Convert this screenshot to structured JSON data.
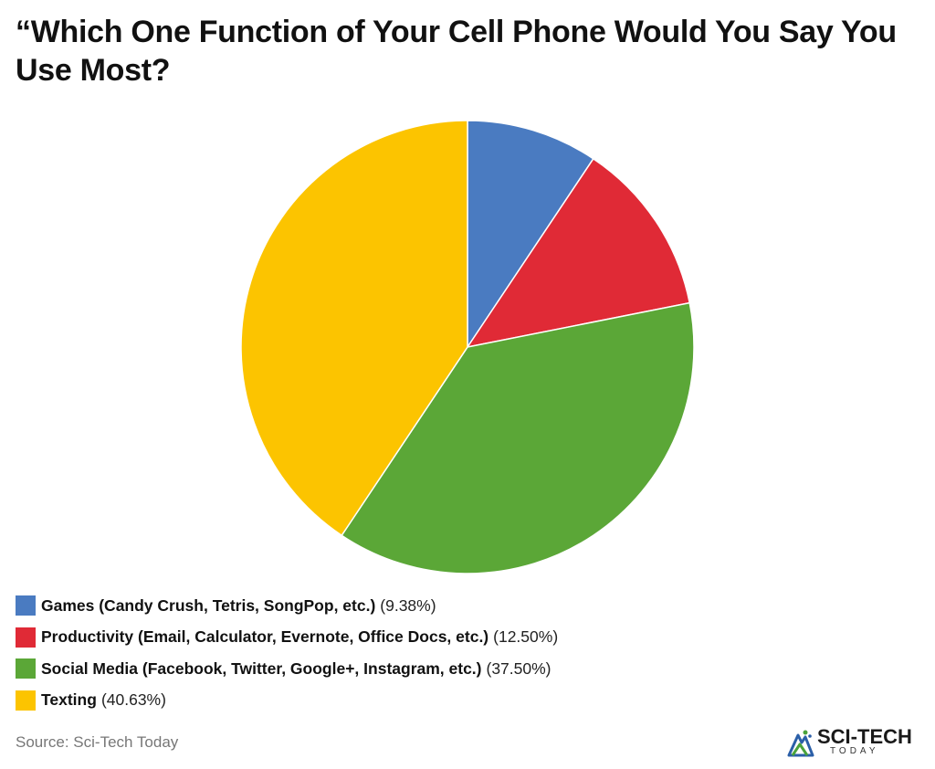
{
  "title": "“Which One Function of Your Cell Phone Would You Say You Use Most?",
  "chart_data": {
    "type": "pie",
    "categories": [
      "Games (Candy Crush, Tetris, SongPop, etc.)",
      "Productivity (Email, Calculator, Evernote, Office Docs, etc.)",
      "Social Media (Facebook, Twitter, Google+, Instagram, etc.)",
      "Texting"
    ],
    "values": [
      9.38,
      12.5,
      37.5,
      40.63
    ],
    "value_labels": [
      "(9.38%)",
      "(12.50%)",
      "(37.50%)",
      "(40.63%)"
    ],
    "colors": [
      "#4a7bc1",
      "#e02a36",
      "#5ba737",
      "#fcc400"
    ],
    "legend_position": "bottom-left"
  },
  "source": "Source: Sci-Tech Today",
  "brand": {
    "name": "SCI-TECH",
    "sub": "TODAY"
  }
}
